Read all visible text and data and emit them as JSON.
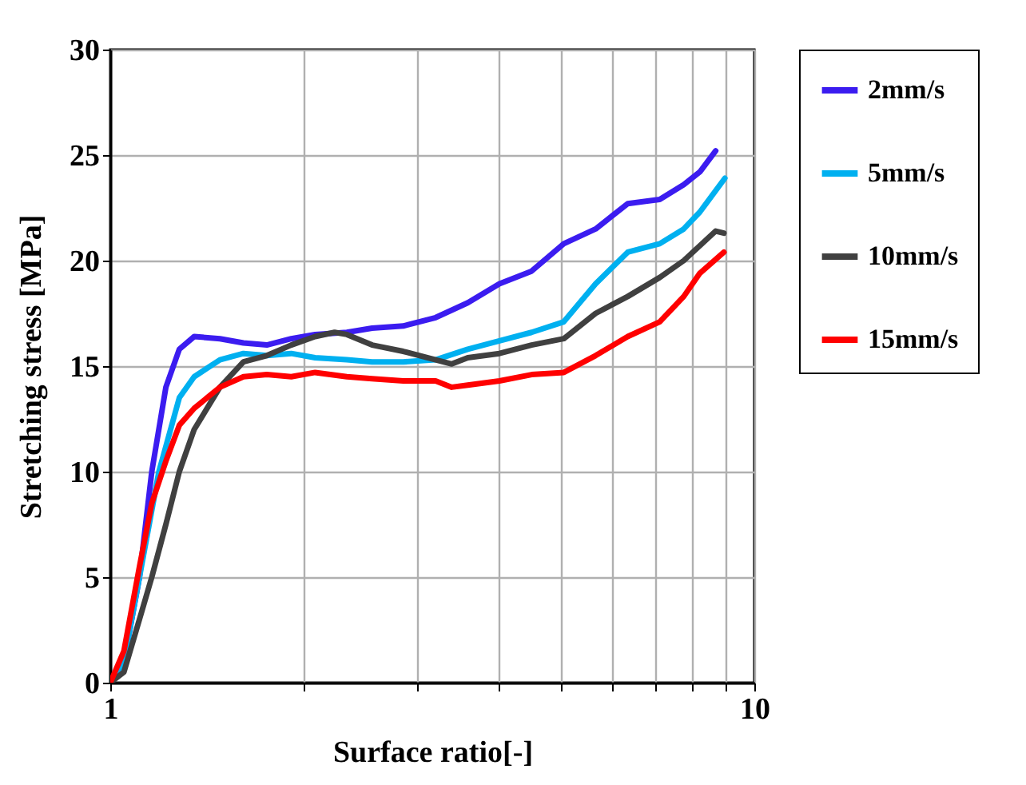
{
  "chart_data": {
    "type": "line",
    "xlabel": "Surface ratio[-]",
    "ylabel": "Stretching stress [MPa]",
    "log": "x",
    "xlim": [
      1,
      10
    ],
    "xticks": [
      1,
      {
        "value": 2,
        "label": null
      },
      {
        "value": 3,
        "label": null
      },
      {
        "value": 4,
        "label": null
      },
      {
        "value": 5,
        "label": null
      },
      {
        "value": 6,
        "label": null
      },
      {
        "value": 7,
        "label": null
      },
      {
        "value": 8,
        "label": null
      },
      {
        "value": 9,
        "label": null
      },
      10
    ],
    "ylim": [
      0,
      30
    ],
    "yticks": [
      0,
      5,
      10,
      15,
      20,
      25,
      30
    ],
    "grid": true,
    "legend": "right",
    "series": [
      {
        "name": "2mm/s",
        "color": "#3b1cf0",
        "x": [
          1,
          1.05,
          1.11,
          1.16,
          1.22,
          1.28,
          1.35,
          1.48,
          1.61,
          1.75,
          1.91,
          2.08,
          2.33,
          2.55,
          2.85,
          3.2,
          3.59,
          4.02,
          4.51,
          5.06,
          5.67,
          6.36,
          7.13,
          7.77,
          8.23,
          8.71
        ],
        "values": [
          0,
          1,
          5,
          10,
          14,
          15.8,
          16.4,
          16.3,
          16.1,
          16,
          16.3,
          16.5,
          16.6,
          16.8,
          16.9,
          17.3,
          18,
          18.9,
          19.5,
          20.8,
          21.5,
          22.7,
          22.9,
          23.6,
          24.2,
          25.2
        ]
      },
      {
        "name": "5mm/s",
        "color": "#00b0f0",
        "x": [
          1,
          1.05,
          1.11,
          1.19,
          1.28,
          1.35,
          1.48,
          1.61,
          1.75,
          1.91,
          2.08,
          2.33,
          2.55,
          2.85,
          3.2,
          3.59,
          4.02,
          4.51,
          5.06,
          5.67,
          6.36,
          7.13,
          7.77,
          8.23,
          9
        ],
        "values": [
          0,
          1,
          5,
          10,
          13.5,
          14.5,
          15.3,
          15.6,
          15.5,
          15.6,
          15.4,
          15.3,
          15.2,
          15.2,
          15.3,
          15.8,
          16.2,
          16.6,
          17.1,
          18.9,
          20.4,
          20.8,
          21.5,
          22.3,
          23.9
        ]
      },
      {
        "name": "10mm/s",
        "color": "#404040",
        "x": [
          1,
          1.05,
          1.11,
          1.16,
          1.22,
          1.28,
          1.35,
          1.48,
          1.61,
          1.75,
          1.91,
          2.08,
          2.23,
          2.33,
          2.55,
          2.85,
          3.2,
          3.39,
          3.59,
          4.02,
          4.51,
          5.06,
          5.67,
          6.36,
          7.13,
          7.77,
          8.71,
          8.97
        ],
        "values": [
          0,
          0.5,
          3,
          5,
          7.5,
          10,
          12,
          14,
          15.2,
          15.5,
          16,
          16.4,
          16.6,
          16.5,
          16,
          15.7,
          15.3,
          15.1,
          15.4,
          15.6,
          16,
          16.3,
          17.5,
          18.3,
          19.2,
          20,
          21.4,
          21.3
        ]
      },
      {
        "name": "15mm/s",
        "color": "#ff0000",
        "x": [
          1,
          1.05,
          1.11,
          1.16,
          1.22,
          1.28,
          1.35,
          1.48,
          1.61,
          1.75,
          1.91,
          2.08,
          2.33,
          2.55,
          2.85,
          3.2,
          3.39,
          3.59,
          4.02,
          4.51,
          5.06,
          5.67,
          6.36,
          7.13,
          7.77,
          8.23,
          8.97
        ],
        "values": [
          0,
          1.5,
          5.5,
          8.5,
          10.5,
          12.2,
          13,
          14,
          14.5,
          14.6,
          14.5,
          14.7,
          14.5,
          14.4,
          14.3,
          14.3,
          14,
          14.1,
          14.3,
          14.6,
          14.7,
          15.5,
          16.4,
          17.1,
          18.3,
          19.4,
          20.4
        ]
      }
    ]
  }
}
